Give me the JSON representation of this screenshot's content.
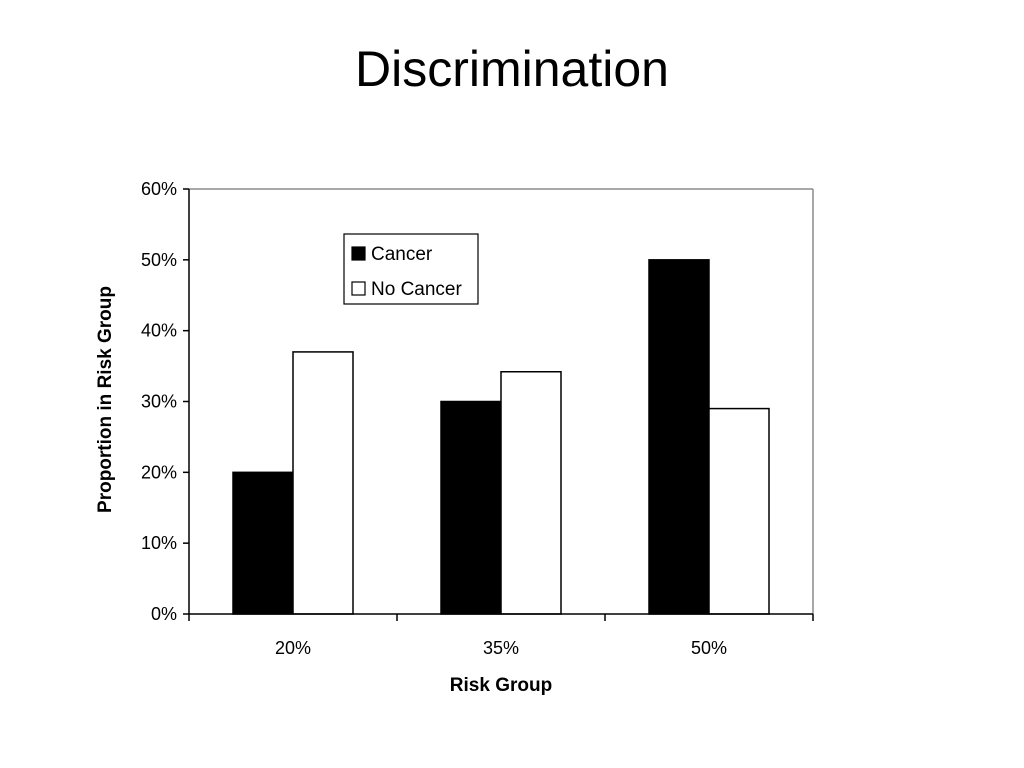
{
  "chart_data": {
    "type": "bar",
    "title": "Discrimination",
    "xlabel": "Risk Group",
    "ylabel": "Proportion in Risk Group",
    "categories": [
      "20%",
      "35%",
      "50%"
    ],
    "series": [
      {
        "name": "Cancer",
        "values": [
          0.2,
          0.3,
          0.5
        ],
        "color": "#000000"
      },
      {
        "name": "No Cancer",
        "values": [
          0.37,
          0.342,
          0.29
        ],
        "color": "#ffffff"
      }
    ],
    "ylim": [
      0,
      0.6
    ],
    "yticks": [
      0,
      0.1,
      0.2,
      0.3,
      0.4,
      0.5,
      0.6
    ],
    "ytick_labels": [
      "0%",
      "10%",
      "20%",
      "30%",
      "40%",
      "50%",
      "60%"
    ],
    "grid": false,
    "legend_position": "top-center"
  }
}
